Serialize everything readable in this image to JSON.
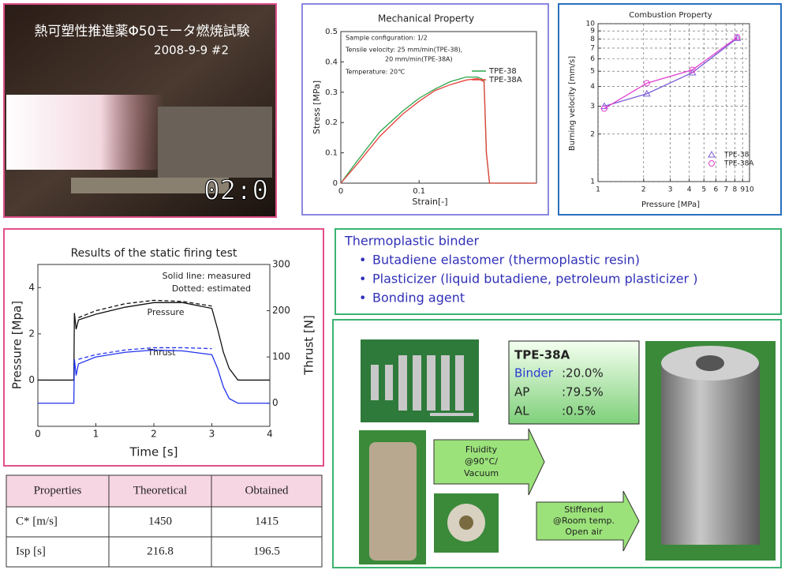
{
  "video": {
    "caption": "熱可塑性推進薬Φ50モータ燃焼試験",
    "date": "2008-9-9  #2",
    "timer": "02:0"
  },
  "chart_data": [
    {
      "type": "line",
      "title": "Mechanical Property",
      "x_label": "Strain[-]",
      "y_label": "Stress [MPa]",
      "annotations": [
        "Sample configuration: 1/2",
        "Tensile velocity: 25 mm/min(TPE-38),",
        "20 mm/min(TPE-38A)",
        "Temperature: 20℃"
      ],
      "x": [
        0,
        0.02,
        0.05,
        0.08,
        0.1,
        0.12,
        0.14,
        0.16,
        0.175,
        0.183,
        0.186,
        0.19,
        0.25
      ],
      "series": [
        {
          "name": "TPE-38",
          "color": "#2aa84a",
          "values": [
            0,
            0.07,
            0.17,
            0.24,
            0.28,
            0.31,
            0.335,
            0.35,
            0.35,
            0.34,
            0.1,
            0,
            0
          ]
        },
        {
          "name": "TPE-38A",
          "color": "#e8403a",
          "values": [
            0,
            0.06,
            0.155,
            0.23,
            0.27,
            0.305,
            0.325,
            0.34,
            0.345,
            0.335,
            0.1,
            0,
            0
          ]
        }
      ],
      "xlim": [
        0,
        0.25
      ],
      "xticks": [
        0,
        0.1
      ],
      "ylim": [
        0,
        0.5
      ],
      "yticks": [
        0,
        0.1,
        0.2,
        0.3,
        0.4,
        0.5
      ],
      "grid": false,
      "legend": "upper right"
    },
    {
      "type": "scatter",
      "title": "Combustion Property",
      "x_label": "Pressure [MPa]",
      "y_label": "Burning velocity [mm/s]",
      "log_scale": true,
      "series": [
        {
          "name": "TPE-38",
          "color": "#7b5cd6",
          "marker": "triangle",
          "x": [
            1.1,
            2.1,
            4.2,
            8.3
          ],
          "values": [
            3.0,
            3.6,
            4.9,
            8.1
          ]
        },
        {
          "name": "TPE-38A",
          "color": "#e040d0",
          "marker": "circle",
          "x": [
            1.1,
            2.1,
            4.2,
            8.3
          ],
          "values": [
            2.9,
            4.2,
            5.1,
            8.2
          ]
        }
      ],
      "xlim": [
        1,
        10
      ],
      "xticks": [
        1,
        2,
        3,
        4,
        5,
        6,
        7,
        8,
        9,
        10
      ],
      "ylim": [
        1,
        10
      ],
      "yticks": [
        1,
        2,
        3,
        4,
        5,
        6,
        7,
        8,
        9,
        10
      ],
      "grid": true,
      "legend": "lower right"
    },
    {
      "type": "line",
      "title": "Results of the static firing test",
      "x_label": "Time [s]",
      "y_label": "Pressure [Mpa]",
      "y2_label": "Thrust [N]",
      "annotations": [
        "Solid line: measured",
        "Dotted: estimated",
        "Pressure",
        "Thrust"
      ],
      "x": [
        0,
        0.62,
        0.63,
        0.66,
        0.7,
        1,
        1.5,
        2,
        2.5,
        3,
        3.1,
        3.2,
        3.3,
        3.45,
        4
      ],
      "series": [
        {
          "color": "#111111",
          "line_style": "solid",
          "values": [
            0,
            0,
            2.9,
            2.2,
            2.6,
            2.85,
            3.15,
            3.35,
            3.35,
            3.1,
            2.2,
            1.2,
            0.5,
            0,
            0
          ]
        },
        {
          "color": "#111111",
          "line_style": "dashed",
          "values": [
            null,
            null,
            null,
            null,
            2.7,
            3.0,
            3.3,
            3.45,
            3.4,
            3.2,
            null,
            null,
            null,
            null,
            null
          ]
        },
        {
          "color": "#2233ee",
          "line_style": "solid",
          "axis": "y2",
          "values": [
            0,
            0,
            95,
            60,
            85,
            100,
            110,
            115,
            113,
            105,
            75,
            35,
            10,
            0,
            0
          ]
        },
        {
          "color": "#2233ee",
          "line_style": "dashed",
          "axis": "y2",
          "values": [
            null,
            null,
            null,
            null,
            95,
            105,
            115,
            120,
            120,
            118,
            null,
            null,
            null,
            null,
            null
          ]
        }
      ],
      "xlim": [
        0,
        4
      ],
      "xticks": [
        0,
        1,
        2,
        3,
        4
      ],
      "ylim": [
        -2,
        5
      ],
      "yticks": [
        0,
        2,
        4
      ],
      "y2lim": [
        -50,
        300
      ],
      "y2ticks": [
        0,
        100,
        200,
        300
      ],
      "grid": false
    }
  ],
  "binder": {
    "title": "Thermoplastic binder",
    "items": [
      "Butadiene elastomer (thermoplastic resin)",
      "Plasticizer (liquid butadiene, petroleum  plasticizer )",
      "Bonding agent"
    ]
  },
  "table": {
    "header": [
      "Properties",
      "Theoretical",
      "Obtained"
    ],
    "rows": [
      [
        "C* [m/s]",
        "1450",
        "1415"
      ],
      [
        "Isp [s]",
        "216.8",
        "196.5"
      ]
    ]
  },
  "composition": {
    "name": "TPE-38A",
    "rows": [
      [
        "Binder",
        ":20.0%"
      ],
      [
        "AP",
        ":79.5%"
      ],
      [
        "AL",
        ":0.5%"
      ]
    ]
  },
  "process": {
    "step1": [
      "Fluidity",
      "@90°C/",
      "Vacuum"
    ],
    "step2": [
      "Stiffened",
      "@Room temp.",
      "Open air"
    ]
  }
}
